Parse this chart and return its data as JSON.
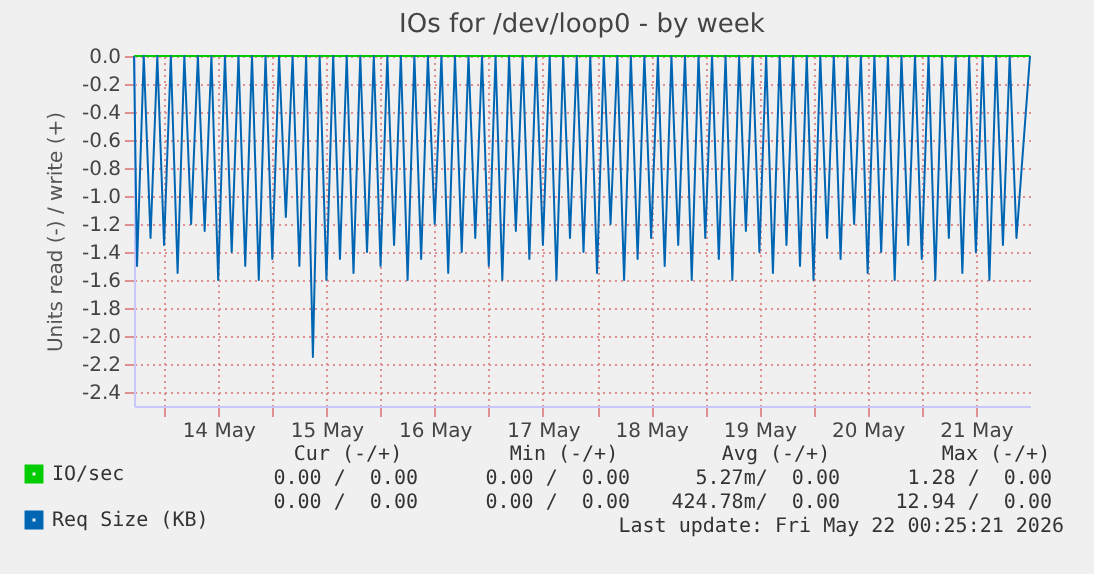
{
  "chart_data": {
    "type": "line",
    "title": "IOs for /dev/loop0 - by week",
    "ylabel": "Units read (-) / write (+)",
    "xlim": [
      "2026-05-13T17:20",
      "2026-05-22T00:00"
    ],
    "xticks": [
      {
        "value": "2026-05-14T00:00",
        "label": null
      },
      {
        "value": "2026-05-14T12:00",
        "label": "14 May"
      },
      {
        "value": "2026-05-15T00:00",
        "label": null
      },
      {
        "value": "2026-05-15T12:00",
        "label": "15 May"
      },
      {
        "value": "2026-05-16T00:00",
        "label": null
      },
      {
        "value": "2026-05-16T12:00",
        "label": "16 May"
      },
      {
        "value": "2026-05-17T00:00",
        "label": null
      },
      {
        "value": "2026-05-17T12:00",
        "label": "17 May"
      },
      {
        "value": "2026-05-18T00:00",
        "label": null
      },
      {
        "value": "2026-05-18T12:00",
        "label": "18 May"
      },
      {
        "value": "2026-05-19T00:00",
        "label": null
      },
      {
        "value": "2026-05-19T12:00",
        "label": "19 May"
      },
      {
        "value": "2026-05-20T00:00",
        "label": null
      },
      {
        "value": "2026-05-20T12:00",
        "label": "20 May"
      },
      {
        "value": "2026-05-21T00:00",
        "label": null
      },
      {
        "value": "2026-05-21T12:00",
        "label": "21 May"
      }
    ],
    "ylim": [
      -2.5,
      0
    ],
    "yticks": [
      {
        "value": 0,
        "label": "0.0"
      },
      {
        "value": -0.2,
        "label": "-0.2"
      },
      {
        "value": -0.4,
        "label": "-0.4"
      },
      {
        "value": -0.6,
        "label": "-0.6"
      },
      {
        "value": -0.8,
        "label": "-0.8"
      },
      {
        "value": -1,
        "label": "-1.0"
      },
      {
        "value": -1.2,
        "label": "-1.2"
      },
      {
        "value": -1.4,
        "label": "-1.4"
      },
      {
        "value": -1.6,
        "label": "-1.6"
      },
      {
        "value": -1.8,
        "label": "-1.8"
      },
      {
        "value": -2,
        "label": "-2.0"
      },
      {
        "value": -2.2,
        "label": "-2.2"
      },
      {
        "value": -2.4,
        "label": "-2.4"
      }
    ],
    "grid": true,
    "legend": "bottom left",
    "marker": "none",
    "line_style": "solid",
    "series": [
      {
        "name": "IO/sec",
        "color": "#00cc00",
        "x": [
          "2026-05-13T17:20",
          "2026-05-22T00:00"
        ],
        "values": [
          0,
          0
        ]
      },
      {
        "name": "Req Size (KB)",
        "color": "#0066b3",
        "x": [
          "2026-05-13T17:20",
          "2026-05-13T18:00",
          "2026-05-13T19:30",
          "2026-05-13T21:00",
          "2026-05-13T22:30",
          "2026-05-14T00:00",
          "2026-05-14T01:30",
          "2026-05-14T03:00",
          "2026-05-14T04:30",
          "2026-05-14T06:00",
          "2026-05-14T07:30",
          "2026-05-14T09:00",
          "2026-05-14T10:30",
          "2026-05-14T12:00",
          "2026-05-14T13:30",
          "2026-05-14T15:00",
          "2026-05-14T16:30",
          "2026-05-14T18:00",
          "2026-05-14T19:30",
          "2026-05-14T21:00",
          "2026-05-14T22:30",
          "2026-05-15T00:00",
          "2026-05-15T01:30",
          "2026-05-15T03:00",
          "2026-05-15T04:30",
          "2026-05-15T06:00",
          "2026-05-15T07:30",
          "2026-05-15T09:00",
          "2026-05-15T10:30",
          "2026-05-15T12:00",
          "2026-05-15T13:30",
          "2026-05-15T15:00",
          "2026-05-15T16:30",
          "2026-05-15T18:00",
          "2026-05-15T19:30",
          "2026-05-15T21:00",
          "2026-05-15T22:30",
          "2026-05-16T00:00",
          "2026-05-16T01:30",
          "2026-05-16T03:00",
          "2026-05-16T04:30",
          "2026-05-16T06:00",
          "2026-05-16T07:30",
          "2026-05-16T09:00",
          "2026-05-16T10:30",
          "2026-05-16T12:00",
          "2026-05-16T13:30",
          "2026-05-16T15:00",
          "2026-05-16T16:30",
          "2026-05-16T18:00",
          "2026-05-16T19:30",
          "2026-05-16T21:00",
          "2026-05-16T22:30",
          "2026-05-17T00:00",
          "2026-05-17T01:30",
          "2026-05-17T03:00",
          "2026-05-17T04:30",
          "2026-05-17T06:00",
          "2026-05-17T07:30",
          "2026-05-17T09:00",
          "2026-05-17T10:30",
          "2026-05-17T12:00",
          "2026-05-17T13:30",
          "2026-05-17T15:00",
          "2026-05-17T16:30",
          "2026-05-17T18:00",
          "2026-05-17T19:30",
          "2026-05-17T21:00",
          "2026-05-17T22:30",
          "2026-05-18T00:00",
          "2026-05-18T01:30",
          "2026-05-18T03:00",
          "2026-05-18T04:30",
          "2026-05-18T06:00",
          "2026-05-18T07:30",
          "2026-05-18T09:00",
          "2026-05-18T10:30",
          "2026-05-18T12:00",
          "2026-05-18T13:30",
          "2026-05-18T15:00",
          "2026-05-18T16:30",
          "2026-05-18T18:00",
          "2026-05-18T19:30",
          "2026-05-18T21:00",
          "2026-05-18T22:30",
          "2026-05-19T00:00",
          "2026-05-19T01:30",
          "2026-05-19T03:00",
          "2026-05-19T04:30",
          "2026-05-19T06:00",
          "2026-05-19T07:30",
          "2026-05-19T09:00",
          "2026-05-19T10:30",
          "2026-05-19T12:00",
          "2026-05-19T13:30",
          "2026-05-19T15:00",
          "2026-05-19T16:30",
          "2026-05-19T18:00",
          "2026-05-19T19:30",
          "2026-05-19T21:00",
          "2026-05-19T22:30",
          "2026-05-20T00:00",
          "2026-05-20T01:30",
          "2026-05-20T03:00",
          "2026-05-20T04:30",
          "2026-05-20T06:00",
          "2026-05-20T07:30",
          "2026-05-20T09:00",
          "2026-05-20T10:30",
          "2026-05-20T12:00",
          "2026-05-20T13:30",
          "2026-05-20T15:00",
          "2026-05-20T16:30",
          "2026-05-20T18:00",
          "2026-05-20T19:30",
          "2026-05-20T21:00",
          "2026-05-20T22:30",
          "2026-05-21T00:00",
          "2026-05-21T01:30",
          "2026-05-21T03:00",
          "2026-05-21T04:30",
          "2026-05-21T06:00",
          "2026-05-21T07:30",
          "2026-05-21T09:00",
          "2026-05-21T10:30",
          "2026-05-21T12:00",
          "2026-05-21T13:30",
          "2026-05-21T15:00",
          "2026-05-21T16:30",
          "2026-05-21T18:00",
          "2026-05-21T19:30",
          "2026-05-21T21:00",
          "2026-05-22T00:00"
        ],
        "values": [
          0,
          -1.5,
          0,
          -1.3,
          0,
          -1.35,
          0,
          -1.55,
          0,
          -1.2,
          0,
          -1.25,
          0,
          -1.6,
          0,
          -1.4,
          0,
          -1.5,
          0,
          -1.6,
          0,
          -1.45,
          0,
          -1.15,
          0,
          -1.5,
          0,
          -2.15,
          0,
          -1.6,
          0,
          -1.45,
          0,
          -1.55,
          0,
          -1.4,
          0,
          -1.5,
          0,
          -1.35,
          0,
          -1.6,
          0,
          -1.45,
          0,
          -1.2,
          0,
          -1.55,
          0,
          -1.4,
          0,
          -1.3,
          0,
          -1.5,
          0,
          -1.6,
          0,
          -1.25,
          0,
          -1.45,
          0,
          -1.35,
          0,
          -1.6,
          0,
          -1.3,
          0,
          -1.4,
          0,
          -1.55,
          0,
          -1.2,
          0,
          -1.6,
          0,
          -1.45,
          0,
          -1.3,
          0,
          -1.5,
          0,
          -1.35,
          0,
          -1.6,
          0,
          -1.3,
          0,
          -1.45,
          0,
          -1.6,
          0,
          -1.25,
          0,
          -1.4,
          0,
          -1.55,
          0,
          -1.35,
          0,
          -1.5,
          0,
          -1.6,
          0,
          -1.3,
          0,
          -1.45,
          0,
          -1.2,
          0,
          -1.55,
          0,
          -1.4,
          0,
          -1.6,
          0,
          -1.35,
          0,
          -1.45,
          0,
          -1.6,
          0,
          -1.3,
          0,
          -1.55,
          0,
          -1.4,
          0,
          -1.6,
          0,
          -1.35,
          0,
          -1.3,
          0
        ]
      }
    ],
    "annotations": [
      "Cur (-/+)",
      "Min (-/+)",
      "Avg (-/+)",
      "Max (-/+)",
      "0.00 /  0.00",
      "0.00 /  0.00",
      "5.27m/  0.00",
      "1.28 /  0.00",
      "0.00 /  0.00",
      "0.00 /  0.00",
      "424.78m/  0.00",
      "12.94 /  0.00",
      "Last update: Fri May 22 00:25:21 2026"
    ]
  }
}
